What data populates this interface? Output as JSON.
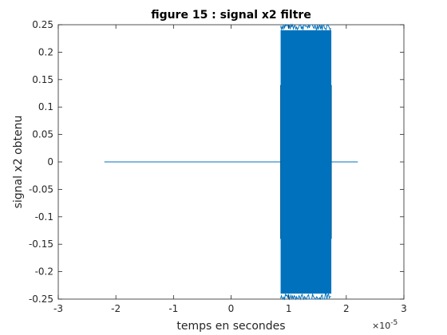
{
  "chart_data": {
    "type": "line",
    "title": "figure 15 : signal x2 filtre",
    "xlabel": "temps en secondes",
    "ylabel": "signal x2 obtenu",
    "xlim": [
      -3e-05,
      3e-05
    ],
    "ylim": [
      -0.25,
      0.25
    ],
    "x_exponent_label": "×10",
    "x_exponent_power": "-5",
    "x_ticks": [
      -3,
      -2,
      -1,
      0,
      1,
      2,
      3
    ],
    "x_tick_labels": [
      "-3",
      "-2",
      "-1",
      "0",
      "1",
      "2",
      "3"
    ],
    "y_ticks": [
      -0.25,
      -0.2,
      -0.15,
      -0.1,
      -0.05,
      0,
      0.05,
      0.1,
      0.15,
      0.2,
      0.25
    ],
    "y_tick_labels": [
      "-0.25",
      "-0.2",
      "-0.15",
      "-0.1",
      "-0.05",
      "0",
      "0.05",
      "0.1",
      "0.15",
      "0.2",
      "0.25"
    ],
    "grid": false,
    "series_color": "#0072BD",
    "series": [
      {
        "segments": [
          {
            "kind": "flat",
            "x_start": -2.2e-05,
            "x_end": 8.6e-06,
            "y": 0
          },
          {
            "kind": "oscillation",
            "x_start": 8.6e-06,
            "x_end": 1.74e-05,
            "amplitude_max": 0.25,
            "amplitude_typical": 0.24
          },
          {
            "kind": "flat",
            "x_start": 1.74e-05,
            "x_end": 2.2e-05,
            "y": 0
          }
        ]
      }
    ]
  }
}
